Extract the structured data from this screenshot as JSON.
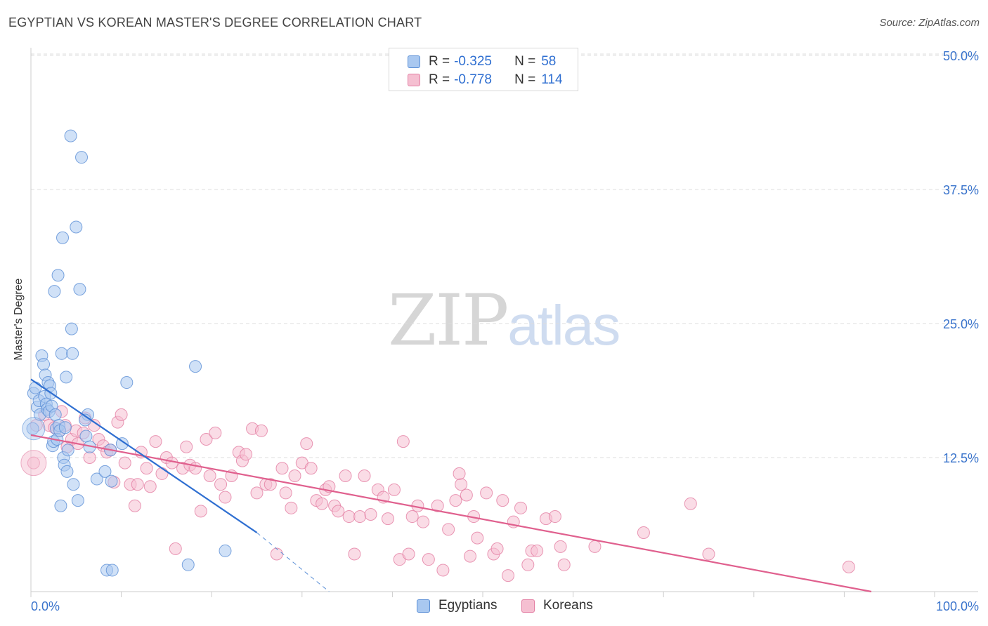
{
  "title": "EGYPTIAN VS KOREAN MASTER'S DEGREE CORRELATION CHART",
  "source": "Source: ZipAtlas.com",
  "watermark": {
    "zip": "ZIP",
    "atlas": "atlas"
  },
  "legend": {
    "r_label": "R = ",
    "n_label": "N = ",
    "rows": [
      {
        "r": "-0.325",
        "n": "58"
      },
      {
        "r": "-0.778",
        "n": "114"
      }
    ]
  },
  "bottom_legend": [
    "Egyptians",
    "Koreans"
  ],
  "colors": {
    "blue_fill": "#a9c8f0",
    "blue_stroke": "#5b8fd6",
    "blue_line": "#2f6fd1",
    "pink_fill": "#f5bfd1",
    "pink_stroke": "#e37ea3",
    "pink_line": "#e0608e",
    "tick_label": "#3a74cc",
    "grid": "#dcdcdc"
  },
  "chart_data": {
    "type": "scatter",
    "title": "EGYPTIAN VS KOREAN MASTER'S DEGREE CORRELATION CHART",
    "xlabel": "",
    "ylabel": "Master's Degree",
    "xlim": [
      0,
      100
    ],
    "ylim": [
      0,
      51
    ],
    "x_tick_labels": [
      "0.0%",
      "100.0%"
    ],
    "y_ticks": [
      12.5,
      25.0,
      37.5,
      50.0
    ],
    "y_tick_labels": [
      "12.5%",
      "25.0%",
      "37.5%",
      "50.0%"
    ],
    "grid": true,
    "legend_position": "top-center",
    "series": [
      {
        "name": "Egyptians",
        "r": -0.325,
        "n": 58,
        "trend": {
          "x": [
            0,
            25
          ],
          "y": [
            19.8,
            5.5
          ],
          "dashed_to": [
            33,
            0
          ]
        },
        "points": [
          [
            0.3,
            18.5
          ],
          [
            0.5,
            19.0
          ],
          [
            0.7,
            17.2
          ],
          [
            0.9,
            17.8
          ],
          [
            1.0,
            16.5
          ],
          [
            1.2,
            22.0
          ],
          [
            1.4,
            21.2
          ],
          [
            1.5,
            18.2
          ],
          [
            1.6,
            20.2
          ],
          [
            1.7,
            17.5
          ],
          [
            1.8,
            17.0
          ],
          [
            1.9,
            19.5
          ],
          [
            2.0,
            16.8
          ],
          [
            2.1,
            19.2
          ],
          [
            2.2,
            18.5
          ],
          [
            2.3,
            17.3
          ],
          [
            2.4,
            13.6
          ],
          [
            2.5,
            14.0
          ],
          [
            2.6,
            28.0
          ],
          [
            2.7,
            16.5
          ],
          [
            2.8,
            15.2
          ],
          [
            2.9,
            14.2
          ],
          [
            3.0,
            29.5
          ],
          [
            3.1,
            15.5
          ],
          [
            3.2,
            15.0
          ],
          [
            3.3,
            8.0
          ],
          [
            3.4,
            22.2
          ],
          [
            3.5,
            33.0
          ],
          [
            3.6,
            12.5
          ],
          [
            3.7,
            11.8
          ],
          [
            3.8,
            15.3
          ],
          [
            3.9,
            20.0
          ],
          [
            4.0,
            11.2
          ],
          [
            4.1,
            13.2
          ],
          [
            4.4,
            42.5
          ],
          [
            4.5,
            24.5
          ],
          [
            4.6,
            22.2
          ],
          [
            4.7,
            10.0
          ],
          [
            5.0,
            34.0
          ],
          [
            5.2,
            8.5
          ],
          [
            5.4,
            28.2
          ],
          [
            5.6,
            40.5
          ],
          [
            6.1,
            14.5
          ],
          [
            6.3,
            16.5
          ],
          [
            6.5,
            13.5
          ],
          [
            7.3,
            10.5
          ],
          [
            8.2,
            11.2
          ],
          [
            8.4,
            2.0
          ],
          [
            8.8,
            13.2
          ],
          [
            8.9,
            10.3
          ],
          [
            9.0,
            2.0
          ],
          [
            10.1,
            13.8
          ],
          [
            10.6,
            19.5
          ],
          [
            17.4,
            2.5
          ],
          [
            18.2,
            21.0
          ],
          [
            21.5,
            3.8
          ],
          [
            0.2,
            15.2
          ],
          [
            6.0,
            16.0
          ]
        ]
      },
      {
        "name": "Koreans",
        "r": -0.778,
        "n": 114,
        "trend": {
          "x": [
            0,
            93
          ],
          "y": [
            14.6,
            0.0
          ]
        },
        "points": [
          [
            0.3,
            12.0
          ],
          [
            0.6,
            15.5
          ],
          [
            1.5,
            16.5
          ],
          [
            2.0,
            15.5
          ],
          [
            2.6,
            15.3
          ],
          [
            3.2,
            15.0
          ],
          [
            3.4,
            16.8
          ],
          [
            3.8,
            15.5
          ],
          [
            4.0,
            13.5
          ],
          [
            4.5,
            14.2
          ],
          [
            5.0,
            15.0
          ],
          [
            5.2,
            13.8
          ],
          [
            5.8,
            14.8
          ],
          [
            6.0,
            16.2
          ],
          [
            6.5,
            12.5
          ],
          [
            7.0,
            15.5
          ],
          [
            7.5,
            14.2
          ],
          [
            8.0,
            13.6
          ],
          [
            8.4,
            13.0
          ],
          [
            8.8,
            13.2
          ],
          [
            9.2,
            10.2
          ],
          [
            9.6,
            15.8
          ],
          [
            10.0,
            16.5
          ],
          [
            10.4,
            12.0
          ],
          [
            11.0,
            10.0
          ],
          [
            11.5,
            8.0
          ],
          [
            11.8,
            10.0
          ],
          [
            12.2,
            13.0
          ],
          [
            12.8,
            11.5
          ],
          [
            13.2,
            9.8
          ],
          [
            13.8,
            14.0
          ],
          [
            14.5,
            11.0
          ],
          [
            15.0,
            12.5
          ],
          [
            15.6,
            12.0
          ],
          [
            16.0,
            4.0
          ],
          [
            16.8,
            11.5
          ],
          [
            17.2,
            13.5
          ],
          [
            17.6,
            11.8
          ],
          [
            18.2,
            11.5
          ],
          [
            18.8,
            7.5
          ],
          [
            19.4,
            14.2
          ],
          [
            19.8,
            10.8
          ],
          [
            20.4,
            14.8
          ],
          [
            21.0,
            10.0
          ],
          [
            21.5,
            8.8
          ],
          [
            22.2,
            10.8
          ],
          [
            23.0,
            13.0
          ],
          [
            23.4,
            12.2
          ],
          [
            23.8,
            12.8
          ],
          [
            24.5,
            15.2
          ],
          [
            25.0,
            9.2
          ],
          [
            25.5,
            15.0
          ],
          [
            26.0,
            10.0
          ],
          [
            26.5,
            10.0
          ],
          [
            27.2,
            3.5
          ],
          [
            27.8,
            11.5
          ],
          [
            28.2,
            9.2
          ],
          [
            28.8,
            7.8
          ],
          [
            29.2,
            10.8
          ],
          [
            30.0,
            12.0
          ],
          [
            30.5,
            13.8
          ],
          [
            31.0,
            11.5
          ],
          [
            31.6,
            8.5
          ],
          [
            32.2,
            8.2
          ],
          [
            32.6,
            9.5
          ],
          [
            33.0,
            9.8
          ],
          [
            33.6,
            8.0
          ],
          [
            34.0,
            7.5
          ],
          [
            34.8,
            10.8
          ],
          [
            35.2,
            7.0
          ],
          [
            35.8,
            3.5
          ],
          [
            36.4,
            7.0
          ],
          [
            36.9,
            10.8
          ],
          [
            37.6,
            7.2
          ],
          [
            38.4,
            9.5
          ],
          [
            39.0,
            8.8
          ],
          [
            39.5,
            6.8
          ],
          [
            40.2,
            9.5
          ],
          [
            40.8,
            3.0
          ],
          [
            41.2,
            14.0
          ],
          [
            41.8,
            3.5
          ],
          [
            42.2,
            7.0
          ],
          [
            42.8,
            8.0
          ],
          [
            43.4,
            6.5
          ],
          [
            44.0,
            3.0
          ],
          [
            45.0,
            8.0
          ],
          [
            45.6,
            2.0
          ],
          [
            46.2,
            5.8
          ],
          [
            47.0,
            8.5
          ],
          [
            47.6,
            10.0
          ],
          [
            48.2,
            9.0
          ],
          [
            48.6,
            3.3
          ],
          [
            49.0,
            7.0
          ],
          [
            49.4,
            5.0
          ],
          [
            50.4,
            9.2
          ],
          [
            51.2,
            3.5
          ],
          [
            51.6,
            4.0
          ],
          [
            52.2,
            8.5
          ],
          [
            52.8,
            1.5
          ],
          [
            53.4,
            6.5
          ],
          [
            54.2,
            7.8
          ],
          [
            55.0,
            2.5
          ],
          [
            55.4,
            3.8
          ],
          [
            56.0,
            3.8
          ],
          [
            57.0,
            6.8
          ],
          [
            58.0,
            7.0
          ],
          [
            58.6,
            4.2
          ],
          [
            59.0,
            2.5
          ],
          [
            62.4,
            4.2
          ],
          [
            67.8,
            5.5
          ],
          [
            73.0,
            8.2
          ],
          [
            75.0,
            3.5
          ],
          [
            90.5,
            2.3
          ],
          [
            47.4,
            11.0
          ]
        ]
      }
    ]
  }
}
